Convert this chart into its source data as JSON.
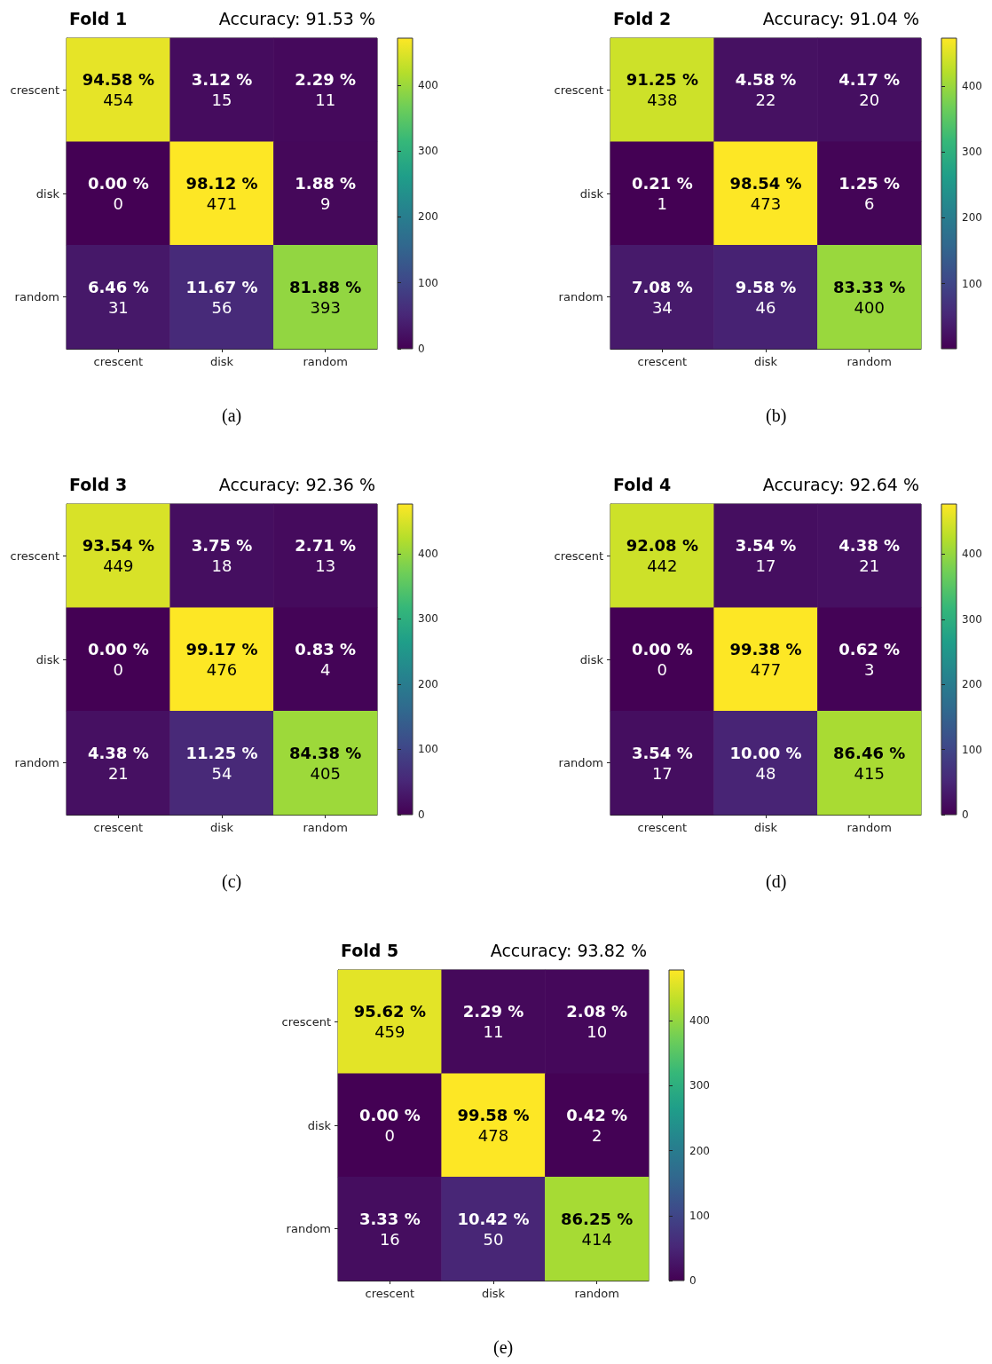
{
  "chart_data": [
    {
      "type": "heatmap",
      "title": "Fold 1",
      "subtitle": "Accuracy: 91.53 %",
      "annotations": [
        "(a)"
      ],
      "categories": [
        "crescent",
        "disk",
        "random"
      ],
      "y_categories": [
        "crescent",
        "disk",
        "random"
      ],
      "cells": [
        [
          454,
          15,
          11
        ],
        [
          0,
          471,
          9
        ],
        [
          31,
          56,
          393
        ]
      ],
      "cell_labels": [
        [
          "94.58 %\n454",
          "3.12 %\n15",
          "2.29 %\n11"
        ],
        [
          "0.00 %\n0",
          "98.12 %\n471",
          "1.88 %\n9"
        ],
        [
          "6.46 %\n31",
          "11.67 %\n56",
          "81.88 %\n393"
        ]
      ],
      "clim": [
        0,
        471
      ],
      "cticks": [
        0,
        100,
        200,
        300,
        400
      ]
    },
    {
      "type": "heatmap",
      "title": "Fold 2",
      "subtitle": "Accuracy: 91.04 %",
      "annotations": [
        "(b)"
      ],
      "categories": [
        "crescent",
        "disk",
        "random"
      ],
      "y_categories": [
        "crescent",
        "disk",
        "random"
      ],
      "cells": [
        [
          438,
          22,
          20
        ],
        [
          1,
          473,
          6
        ],
        [
          34,
          46,
          400
        ]
      ],
      "cell_labels": [
        [
          "91.25 %\n438",
          "4.58 %\n22",
          "4.17 %\n20"
        ],
        [
          "0.21 %\n1",
          "98.54 %\n473",
          "1.25 %\n6"
        ],
        [
          "7.08 %\n34",
          "9.58 %\n46",
          "83.33 %\n400"
        ]
      ],
      "clim": [
        1,
        473
      ],
      "cticks": [
        100,
        200,
        300,
        400
      ]
    },
    {
      "type": "heatmap",
      "title": "Fold 3",
      "subtitle": "Accuracy: 92.36 %",
      "annotations": [
        "(c)"
      ],
      "categories": [
        "crescent",
        "disk",
        "random"
      ],
      "y_categories": [
        "crescent",
        "disk",
        "random"
      ],
      "cells": [
        [
          449,
          18,
          13
        ],
        [
          0,
          476,
          4
        ],
        [
          21,
          54,
          405
        ]
      ],
      "cell_labels": [
        [
          "93.54 %\n449",
          "3.75 %\n18",
          "2.71 %\n13"
        ],
        [
          "0.00 %\n0",
          "99.17 %\n476",
          "0.83 %\n4"
        ],
        [
          "4.38 %\n21",
          "11.25 %\n54",
          "84.38 %\n405"
        ]
      ],
      "clim": [
        0,
        476
      ],
      "cticks": [
        0,
        100,
        200,
        300,
        400
      ]
    },
    {
      "type": "heatmap",
      "title": "Fold 4",
      "subtitle": "Accuracy: 92.64 %",
      "annotations": [
        "(d)"
      ],
      "categories": [
        "crescent",
        "disk",
        "random"
      ],
      "y_categories": [
        "crescent",
        "disk",
        "random"
      ],
      "cells": [
        [
          442,
          17,
          21
        ],
        [
          0,
          477,
          3
        ],
        [
          17,
          48,
          415
        ]
      ],
      "cell_labels": [
        [
          "92.08 %\n442",
          "3.54 %\n17",
          "4.38 %\n21"
        ],
        [
          "0.00 %\n0",
          "99.38 %\n477",
          "0.62 %\n3"
        ],
        [
          "3.54 %\n17",
          "10.00 %\n48",
          "86.46 %\n415"
        ]
      ],
      "clim": [
        0,
        477
      ],
      "cticks": [
        0,
        100,
        200,
        300,
        400
      ]
    },
    {
      "type": "heatmap",
      "title": "Fold 5",
      "subtitle": "Accuracy: 93.82 %",
      "annotations": [
        "(e)"
      ],
      "categories": [
        "crescent",
        "disk",
        "random"
      ],
      "y_categories": [
        "crescent",
        "disk",
        "random"
      ],
      "cells": [
        [
          459,
          11,
          10
        ],
        [
          0,
          478,
          2
        ],
        [
          16,
          50,
          414
        ]
      ],
      "cell_labels": [
        [
          "95.62 %\n459",
          "2.29 %\n11",
          "2.08 %\n10"
        ],
        [
          "0.00 %\n0",
          "99.58 %\n478",
          "0.42 %\n2"
        ],
        [
          "3.33 %\n16",
          "10.42 %\n50",
          "86.25 %\n414"
        ]
      ],
      "clim": [
        0,
        478
      ],
      "cticks": [
        0,
        100,
        200,
        300,
        400
      ]
    }
  ]
}
